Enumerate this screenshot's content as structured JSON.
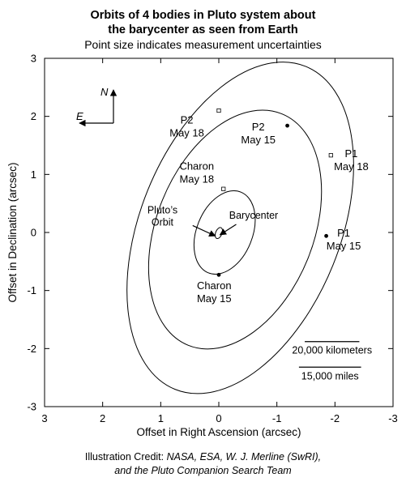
{
  "chart_data": {
    "type": "scatter",
    "title_line1": "Orbits of 4 bodies in Pluto system about",
    "title_line2": "the barycenter as seen from Earth",
    "subtitle": "Point size indicates measurement uncertainties",
    "xlabel": "Offset in Right Ascension (arcsec)",
    "ylabel": "Offset in Declination (arcsec)",
    "xlim": [
      3,
      -3
    ],
    "ylim": [
      -3,
      3
    ],
    "x_reversed": true,
    "xticks": [
      3,
      2,
      1,
      0,
      -1,
      -2,
      -3
    ],
    "yticks": [
      3,
      2,
      1,
      0,
      -1,
      -2,
      -3
    ],
    "grid": false,
    "compass": {
      "north": "N",
      "east": "E"
    },
    "orbits": [
      {
        "id": "pluto",
        "center": [
          0.0,
          -0.01
        ],
        "rx": 0.055,
        "ry": 0.1,
        "rotation_deg": 22
      },
      {
        "id": "charon",
        "center": [
          -0.1,
          0.0
        ],
        "rx": 0.48,
        "ry": 0.75,
        "rotation_deg": 22
      },
      {
        "id": "p2",
        "center": [
          -0.28,
          0.05
        ],
        "rx": 1.35,
        "ry": 2.15,
        "rotation_deg": 22
      },
      {
        "id": "p1",
        "center": [
          -0.37,
          0.08
        ],
        "rx": 1.72,
        "ry": 3.0,
        "rotation_deg": 22
      }
    ],
    "points": [
      {
        "id": "p2-may18",
        "x": 0.0,
        "y": 2.1,
        "filled": false,
        "label_line1": "P2",
        "label_line2": "May 18",
        "label_x": 0.55,
        "label_y": 1.88
      },
      {
        "id": "p2-may15",
        "x": -1.18,
        "y": 1.84,
        "filled": true,
        "label_line1": "P2",
        "label_line2": "May 15",
        "label_x": -0.68,
        "label_y": 1.76
      },
      {
        "id": "p1-may18",
        "x": -1.93,
        "y": 1.33,
        "filled": false,
        "label_line1": "P1",
        "label_line2": "May 18",
        "label_x": -2.28,
        "label_y": 1.3
      },
      {
        "id": "p1-may15",
        "x": -1.85,
        "y": -0.06,
        "filled": true,
        "label_line1": "P1",
        "label_line2": "May 15",
        "label_x": -2.15,
        "label_y": -0.07
      },
      {
        "id": "charon-may18",
        "x": -0.08,
        "y": 0.75,
        "filled": false,
        "label_line1": "Charon",
        "label_line2": "May 18",
        "label_x": 0.38,
        "label_y": 1.08
      },
      {
        "id": "charon-may15",
        "x": 0.0,
        "y": -0.73,
        "filled": true,
        "label_line1": "Charon",
        "label_line2": "May 15",
        "label_x": 0.08,
        "label_y": -0.98
      }
    ],
    "annotations": [
      {
        "id": "plutos-orbit",
        "label_line1": "Pluto’s",
        "label_line2": "Orbit",
        "label_x": 0.97,
        "label_y": 0.33,
        "arrow_from": [
          0.45,
          0.12
        ],
        "arrow_to": [
          0.06,
          -0.06
        ]
      },
      {
        "id": "barycenter",
        "label_line1": "Barycenter",
        "label_line2": "",
        "label_x": -0.6,
        "label_y": 0.24,
        "arrow_from": [
          -0.3,
          0.14
        ],
        "arrow_to": [
          -0.02,
          -0.04
        ]
      }
    ],
    "scale_bars": [
      {
        "label": "20,000 kilometers",
        "x0": -1.48,
        "x1": -2.42,
        "y": -1.88
      },
      {
        "label": "15,000 miles",
        "x0": -1.38,
        "x1": -2.45,
        "y": -2.32
      }
    ]
  },
  "credit": {
    "prefix": "Illustration Credit: ",
    "sources": "NASA, ESA, W. J. Merline (SwRI),",
    "line2": "and the Pluto Companion Search Team"
  }
}
